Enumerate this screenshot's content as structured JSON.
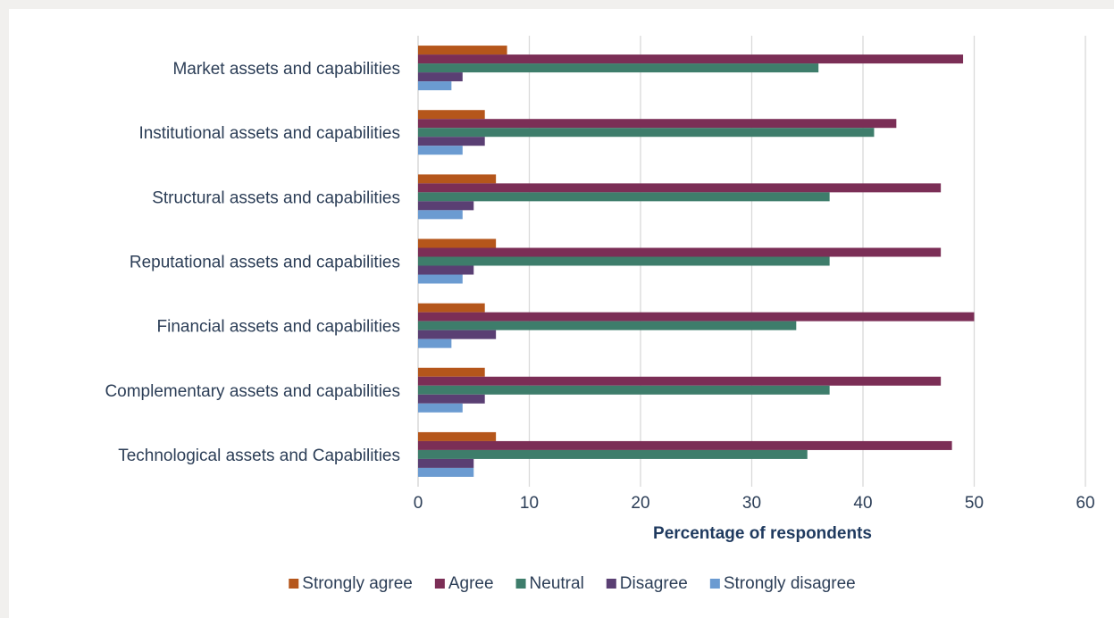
{
  "chart_data": {
    "type": "bar",
    "orientation": "horizontal",
    "categories": [
      "Market assets and capabilities",
      "Institutional assets and capabilities",
      "Structural assets and capabilities",
      "Reputational assets and capabilities",
      "Financial assets and capabilities",
      "Complementary assets and capabilities",
      "Technological assets and Capabilities"
    ],
    "series": [
      {
        "name": "Strongly agree",
        "color": "#b5561b",
        "values": [
          8,
          6,
          7,
          7,
          6,
          6,
          7
        ]
      },
      {
        "name": "Agree",
        "color": "#7b2e56",
        "values": [
          49,
          43,
          47,
          47,
          50,
          47,
          48
        ]
      },
      {
        "name": "Neutral",
        "color": "#3e7d6b",
        "values": [
          36,
          41,
          37,
          37,
          34,
          37,
          35
        ]
      },
      {
        "name": "Disagree",
        "color": "#5a3f73",
        "values": [
          4,
          6,
          5,
          5,
          7,
          6,
          5
        ]
      },
      {
        "name": "Strongly disagree",
        "color": "#6b9bd1",
        "values": [
          3,
          4,
          4,
          4,
          3,
          4,
          5
        ]
      }
    ],
    "xlabel": "Percentage of respondents",
    "ylabel": "",
    "xlim": [
      0,
      60
    ],
    "xticks": [
      "0",
      "10",
      "20",
      "30",
      "40",
      "50",
      "60"
    ],
    "grid": "vertical",
    "legend_position": "bottom"
  }
}
